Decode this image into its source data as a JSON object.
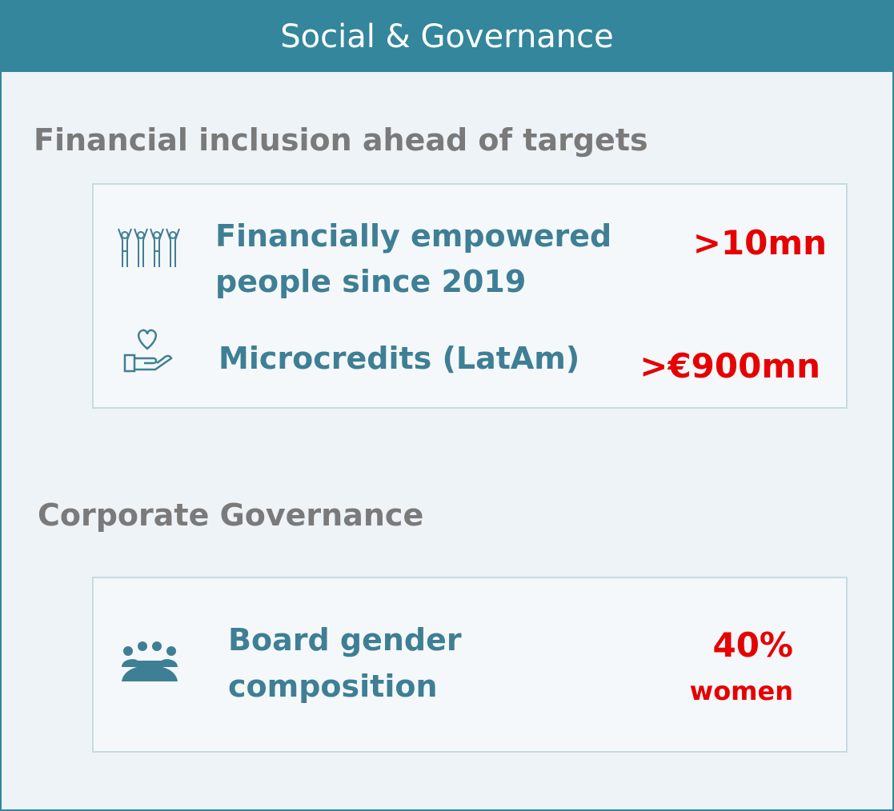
{
  "header": {
    "title": "Social & Governance"
  },
  "sections": [
    {
      "title": "Financial inclusion ahead of targets",
      "items": [
        {
          "label": [
            "Financially empowered",
            "people since 2019"
          ],
          "value": ">10mn"
        },
        {
          "label": [
            "Microcredits (LatAm)"
          ],
          "value": ">€900mn"
        }
      ]
    },
    {
      "title": "Corporate Governance",
      "items": [
        {
          "label": [
            "Board gender",
            "composition"
          ],
          "value": "40%",
          "note": "women"
        }
      ]
    }
  ]
}
